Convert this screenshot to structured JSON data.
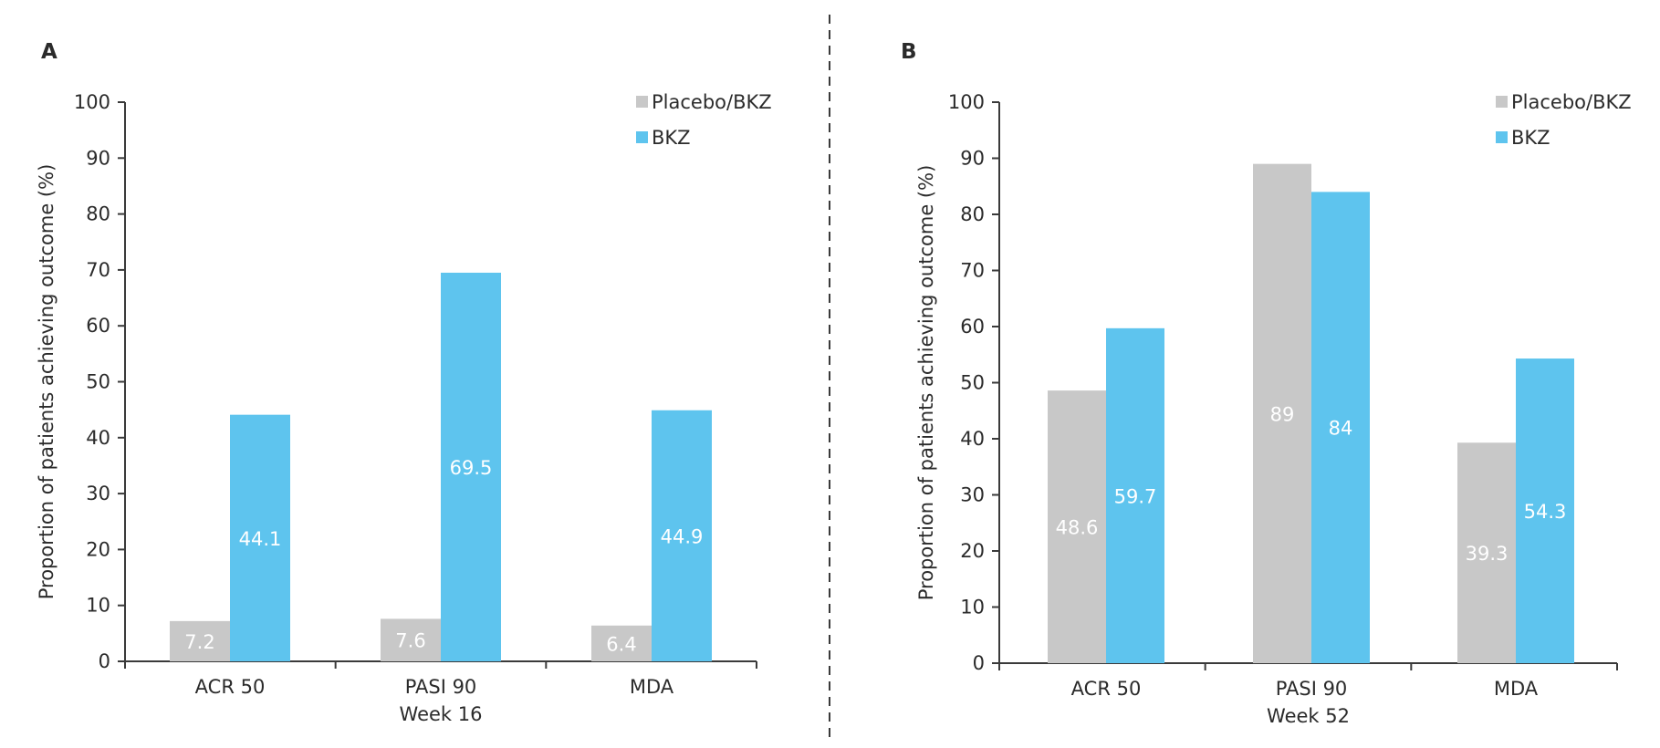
{
  "colors": {
    "placebo": "#c8c8c8",
    "bkz": "#5ec4ee",
    "axis": "#3a3a3a",
    "divider": "#3a3a3a"
  },
  "chart_data": [
    {
      "type": "bar",
      "panel_label": "A",
      "title": "",
      "xlabel": "Week 16",
      "ylabel": "Proportion of patients achieving outcome (%)",
      "ylim": [
        0,
        100
      ],
      "yticks": [
        0,
        10,
        20,
        30,
        40,
        50,
        60,
        70,
        80,
        90,
        100
      ],
      "categories": [
        "ACR 50",
        "PASI 90",
        "MDA"
      ],
      "series": [
        {
          "name": "Placebo/BKZ",
          "color": "#c8c8c8",
          "values": [
            7.2,
            7.6,
            6.4
          ],
          "labels": [
            "7.2",
            "7.6",
            "6.4"
          ]
        },
        {
          "name": "BKZ",
          "color": "#5ec4ee",
          "values": [
            44.1,
            69.5,
            44.9
          ],
          "labels": [
            "44.1",
            "69.5",
            "44.9"
          ]
        }
      ],
      "legend_position": "top-right",
      "grid": false
    },
    {
      "type": "bar",
      "panel_label": "B",
      "title": "",
      "xlabel": "Week 52",
      "ylabel": "Proportion of patients achieving outcome (%)",
      "ylim": [
        0,
        100
      ],
      "yticks": [
        0,
        10,
        20,
        30,
        40,
        50,
        60,
        70,
        80,
        90,
        100
      ],
      "categories": [
        "ACR 50",
        "PASI 90",
        "MDA"
      ],
      "series": [
        {
          "name": "Placebo/BKZ",
          "color": "#c8c8c8",
          "values": [
            48.6,
            89,
            39.3
          ],
          "labels": [
            "48.6",
            "89",
            "39.3"
          ]
        },
        {
          "name": "BKZ",
          "color": "#5ec4ee",
          "values": [
            59.7,
            84,
            54.3
          ],
          "labels": [
            "59.7",
            "84",
            "54.3"
          ]
        }
      ],
      "legend_position": "top-right",
      "grid": false
    }
  ]
}
